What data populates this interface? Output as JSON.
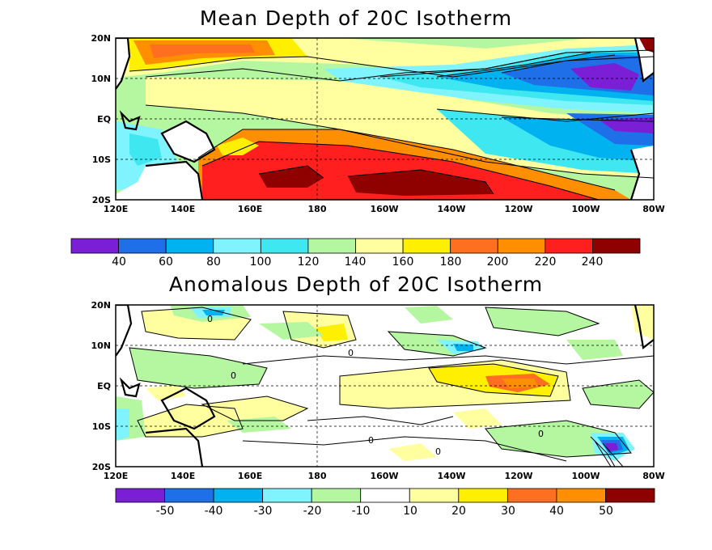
{
  "panels": [
    {
      "title": "Mean Depth of 20C Isotherm",
      "lat_labels": [
        "20N",
        "10N",
        "EQ",
        "10S",
        "20S"
      ],
      "lon_labels": [
        "120E",
        "140E",
        "160E",
        "180",
        "160W",
        "140W",
        "120W",
        "100W",
        "80W"
      ],
      "colorbar": {
        "tick_labels": [
          "40",
          "60",
          "80",
          "100",
          "120",
          "140",
          "160",
          "180",
          "200",
          "220",
          "240"
        ],
        "colors": [
          "#7b1fd6",
          "#1f6fe8",
          "#00b2f0",
          "#7ff4ff",
          "#3fe8f0",
          "#b5f7a0",
          "#ffff9f",
          "#ffef00",
          "#ff6f1f",
          "#ff8f00",
          "#ff1f1f",
          "#8f0000"
        ]
      }
    },
    {
      "title": "Anomalous Depth of 20C Isotherm",
      "lat_labels": [
        "20N",
        "10N",
        "EQ",
        "10S",
        "20S"
      ],
      "lon_labels": [
        "120E",
        "140E",
        "160E",
        "180",
        "160W",
        "140W",
        "120W",
        "100W",
        "80W"
      ],
      "contour_label": "0",
      "colorbar": {
        "tick_labels": [
          "-50",
          "-40",
          "-30",
          "-20",
          "-10",
          "10",
          "20",
          "30",
          "40",
          "50"
        ],
        "colors": [
          "#7b1fd6",
          "#1f6fe8",
          "#00b2f0",
          "#7ff4ff",
          "#b5f7a0",
          "#ffffff",
          "#ffff9f",
          "#ffef00",
          "#ff6f1f",
          "#ff8f00",
          "#8f0000"
        ]
      }
    }
  ]
}
